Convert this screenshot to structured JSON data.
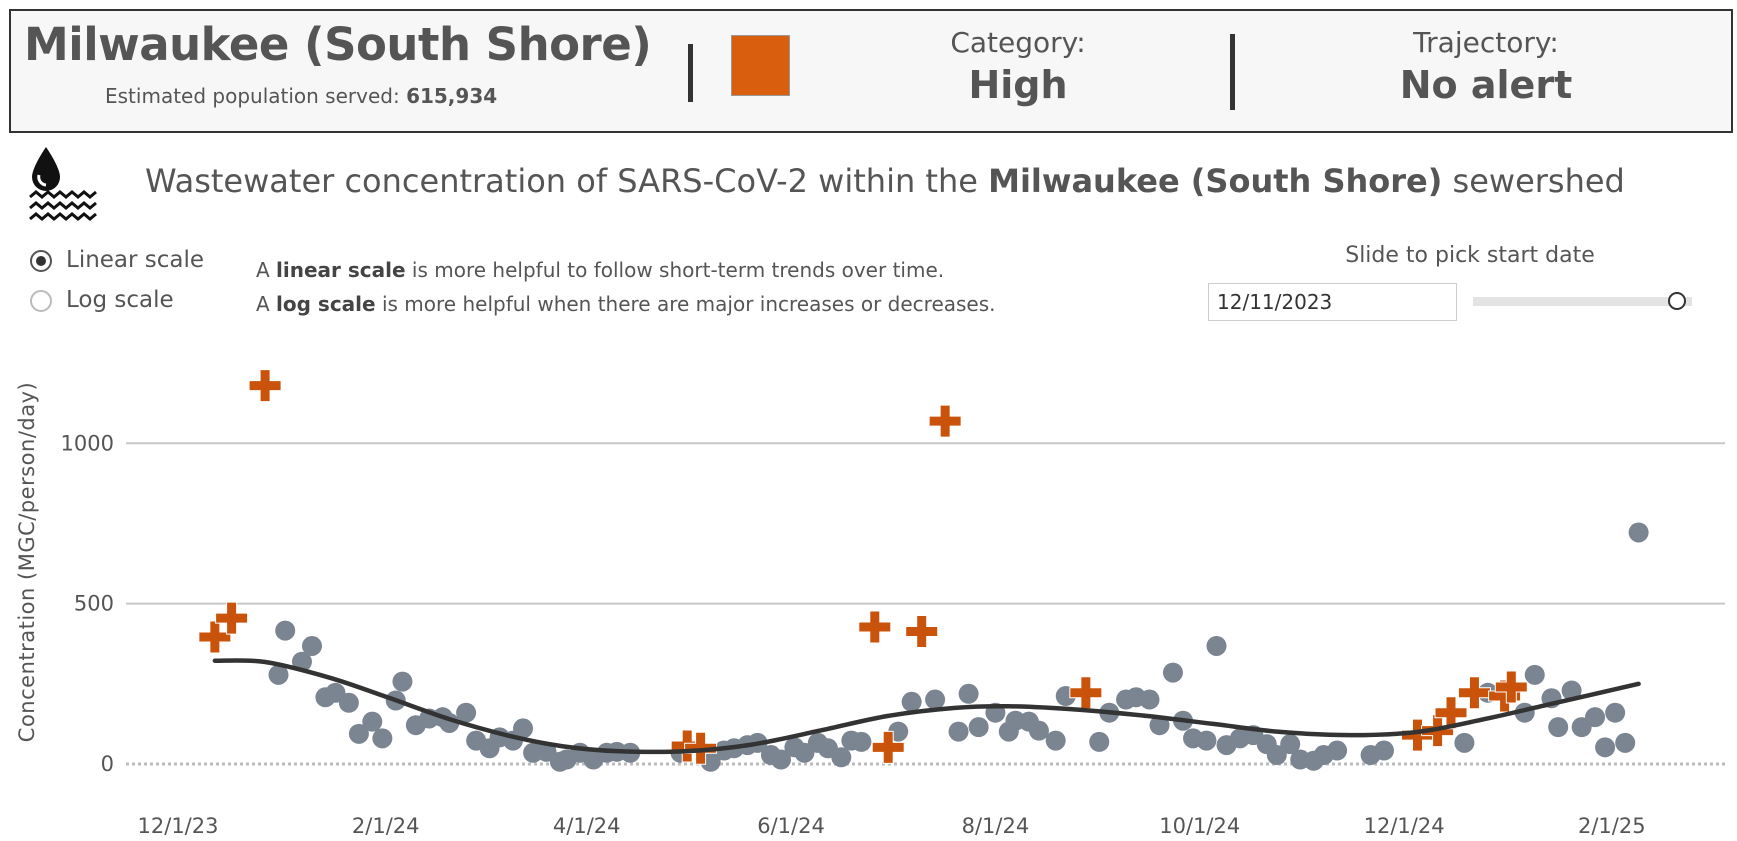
{
  "header": {
    "site_name": "Milwaukee (South Shore)",
    "population_label": "Estimated population served:",
    "population_value": "615,934",
    "category_label": "Category:",
    "category_value": "High",
    "category_color": "#d95f0e",
    "trajectory_label": "Trajectory:",
    "trajectory_value": "No alert"
  },
  "subtitle": {
    "prefix": "Wastewater concentration of SARS-CoV-2 within the",
    "site": "Milwaukee (South Shore)",
    "suffix": "sewershed",
    "icon": "water-drop-waves-icon"
  },
  "scale_options": [
    {
      "label": "Linear scale",
      "selected": true
    },
    {
      "label": "Log scale",
      "selected": false
    }
  ],
  "scale_help": [
    {
      "pre": "A",
      "bold": "linear scale",
      "post": "is more helpful to follow short-term trends over time."
    },
    {
      "pre": "A",
      "bold": "log scale",
      "post": "is more helpful when there are major increases or decreases."
    }
  ],
  "date_picker": {
    "label": "Slide to pick start date",
    "value": "12/11/2023",
    "slider_position_fraction": 0.93
  },
  "chart_data": {
    "type": "scatter",
    "ylabel": "Concentration (MGC/person/day)",
    "ylim": [
      0,
      1250
    ],
    "yticks": [
      0,
      500,
      1000
    ],
    "xlim": [
      "2023-11-21",
      "2025-02-21"
    ],
    "xticks": [
      {
        "date": "2023-12-01",
        "label": "12/1/23"
      },
      {
        "date": "2024-02-01",
        "label": "2/1/24"
      },
      {
        "date": "2024-04-01",
        "label": "4/1/24"
      },
      {
        "date": "2024-06-01",
        "label": "6/1/24"
      },
      {
        "date": "2024-08-01",
        "label": "8/1/24"
      },
      {
        "date": "2024-10-01",
        "label": "10/1/24"
      },
      {
        "date": "2024-12-01",
        "label": "12/1/24"
      },
      {
        "date": "2025-02-01",
        "label": "2/1/25"
      }
    ],
    "grid": true,
    "colors": {
      "sample": "#7a8591",
      "flagged": "#c9530a",
      "trend": "#333333",
      "grid": "#c8c8c8"
    },
    "samples": [
      [
        "2023-12-31",
        278
      ],
      [
        "2024-01-02",
        416
      ],
      [
        "2024-01-07",
        319
      ],
      [
        "2024-01-10",
        368
      ],
      [
        "2024-01-14",
        208
      ],
      [
        "2024-01-17",
        222
      ],
      [
        "2024-01-21",
        191
      ],
      [
        "2024-01-24",
        94
      ],
      [
        "2024-01-28",
        132
      ],
      [
        "2024-01-31",
        80
      ],
      [
        "2024-02-04",
        198
      ],
      [
        "2024-02-06",
        257
      ],
      [
        "2024-02-10",
        121
      ],
      [
        "2024-02-14",
        142
      ],
      [
        "2024-02-18",
        146
      ],
      [
        "2024-02-20",
        128
      ],
      [
        "2024-02-25",
        160
      ],
      [
        "2024-02-28",
        73
      ],
      [
        "2024-03-03",
        49
      ],
      [
        "2024-03-06",
        83
      ],
      [
        "2024-03-10",
        73
      ],
      [
        "2024-03-13",
        111
      ],
      [
        "2024-03-16",
        35
      ],
      [
        "2024-03-20",
        38
      ],
      [
        "2024-03-24",
        7
      ],
      [
        "2024-03-26",
        14
      ],
      [
        "2024-03-30",
        35
      ],
      [
        "2024-04-03",
        14
      ],
      [
        "2024-04-07",
        35
      ],
      [
        "2024-04-10",
        38
      ],
      [
        "2024-04-14",
        35
      ],
      [
        "2024-04-29",
        35
      ],
      [
        "2024-05-08",
        7
      ],
      [
        "2024-05-12",
        42
      ],
      [
        "2024-05-15",
        49
      ],
      [
        "2024-05-19",
        59
      ],
      [
        "2024-05-22",
        66
      ],
      [
        "2024-05-26",
        28
      ],
      [
        "2024-05-29",
        14
      ],
      [
        "2024-06-02",
        52
      ],
      [
        "2024-06-05",
        35
      ],
      [
        "2024-06-09",
        66
      ],
      [
        "2024-06-12",
        49
      ],
      [
        "2024-06-16",
        21
      ],
      [
        "2024-06-19",
        73
      ],
      [
        "2024-06-22",
        69
      ],
      [
        "2024-07-03",
        101
      ],
      [
        "2024-07-07",
        194
      ],
      [
        "2024-07-14",
        201
      ],
      [
        "2024-07-21",
        101
      ],
      [
        "2024-07-24",
        219
      ],
      [
        "2024-07-27",
        115
      ],
      [
        "2024-08-01",
        160
      ],
      [
        "2024-08-05",
        101
      ],
      [
        "2024-08-07",
        135
      ],
      [
        "2024-08-11",
        132
      ],
      [
        "2024-08-14",
        104
      ],
      [
        "2024-08-19",
        73
      ],
      [
        "2024-08-22",
        212
      ],
      [
        "2024-09-01",
        69
      ],
      [
        "2024-09-04",
        160
      ],
      [
        "2024-09-09",
        201
      ],
      [
        "2024-09-12",
        208
      ],
      [
        "2024-09-16",
        201
      ],
      [
        "2024-09-19",
        121
      ],
      [
        "2024-09-23",
        285
      ],
      [
        "2024-09-26",
        135
      ],
      [
        "2024-09-29",
        80
      ],
      [
        "2024-10-03",
        73
      ],
      [
        "2024-10-06",
        368
      ],
      [
        "2024-10-09",
        59
      ],
      [
        "2024-10-13",
        80
      ],
      [
        "2024-10-17",
        90
      ],
      [
        "2024-10-21",
        62
      ],
      [
        "2024-10-24",
        28
      ],
      [
        "2024-10-28",
        62
      ],
      [
        "2024-10-31",
        14
      ],
      [
        "2024-11-04",
        10
      ],
      [
        "2024-11-07",
        28
      ],
      [
        "2024-11-11",
        42
      ],
      [
        "2024-11-21",
        28
      ],
      [
        "2024-11-25",
        42
      ],
      [
        "2024-12-19",
        66
      ],
      [
        "2024-12-26",
        222
      ],
      [
        "2025-01-06",
        160
      ],
      [
        "2025-01-09",
        278
      ],
      [
        "2025-01-14",
        205
      ],
      [
        "2025-01-16",
        115
      ],
      [
        "2025-01-20",
        229
      ],
      [
        "2025-01-23",
        115
      ],
      [
        "2025-01-27",
        146
      ],
      [
        "2025-01-30",
        52
      ],
      [
        "2025-02-02",
        160
      ],
      [
        "2025-02-05",
        66
      ],
      [
        "2025-02-09",
        722
      ]
    ],
    "flagged_samples": [
      [
        "2023-12-12",
        396
      ],
      [
        "2023-12-17",
        455
      ],
      [
        "2023-12-27",
        1180
      ],
      [
        "2024-05-01",
        56
      ],
      [
        "2024-05-05",
        49
      ],
      [
        "2024-06-26",
        427
      ],
      [
        "2024-06-30",
        52
      ],
      [
        "2024-07-10",
        413
      ],
      [
        "2024-07-17",
        1069
      ],
      [
        "2024-08-28",
        222
      ],
      [
        "2024-12-05",
        90
      ],
      [
        "2024-12-11",
        104
      ],
      [
        "2024-12-15",
        160
      ],
      [
        "2024-12-22",
        222
      ],
      [
        "2024-12-31",
        212
      ],
      [
        "2025-01-02",
        240
      ]
    ],
    "trend": [
      [
        "2023-12-12",
        322
      ],
      [
        "2023-12-27",
        318
      ],
      [
        "2024-01-15",
        270
      ],
      [
        "2024-02-01",
        210
      ],
      [
        "2024-02-20",
        140
      ],
      [
        "2024-03-10",
        85
      ],
      [
        "2024-03-25",
        55
      ],
      [
        "2024-04-10",
        40
      ],
      [
        "2024-05-01",
        40
      ],
      [
        "2024-05-20",
        60
      ],
      [
        "2024-06-10",
        105
      ],
      [
        "2024-06-30",
        150
      ],
      [
        "2024-07-20",
        175
      ],
      [
        "2024-08-05",
        180
      ],
      [
        "2024-08-25",
        170
      ],
      [
        "2024-09-15",
        150
      ],
      [
        "2024-10-05",
        125
      ],
      [
        "2024-10-25",
        100
      ],
      [
        "2024-11-15",
        90
      ],
      [
        "2024-12-05",
        100
      ],
      [
        "2024-12-25",
        140
      ],
      [
        "2025-01-15",
        190
      ],
      [
        "2025-02-09",
        250
      ]
    ]
  }
}
